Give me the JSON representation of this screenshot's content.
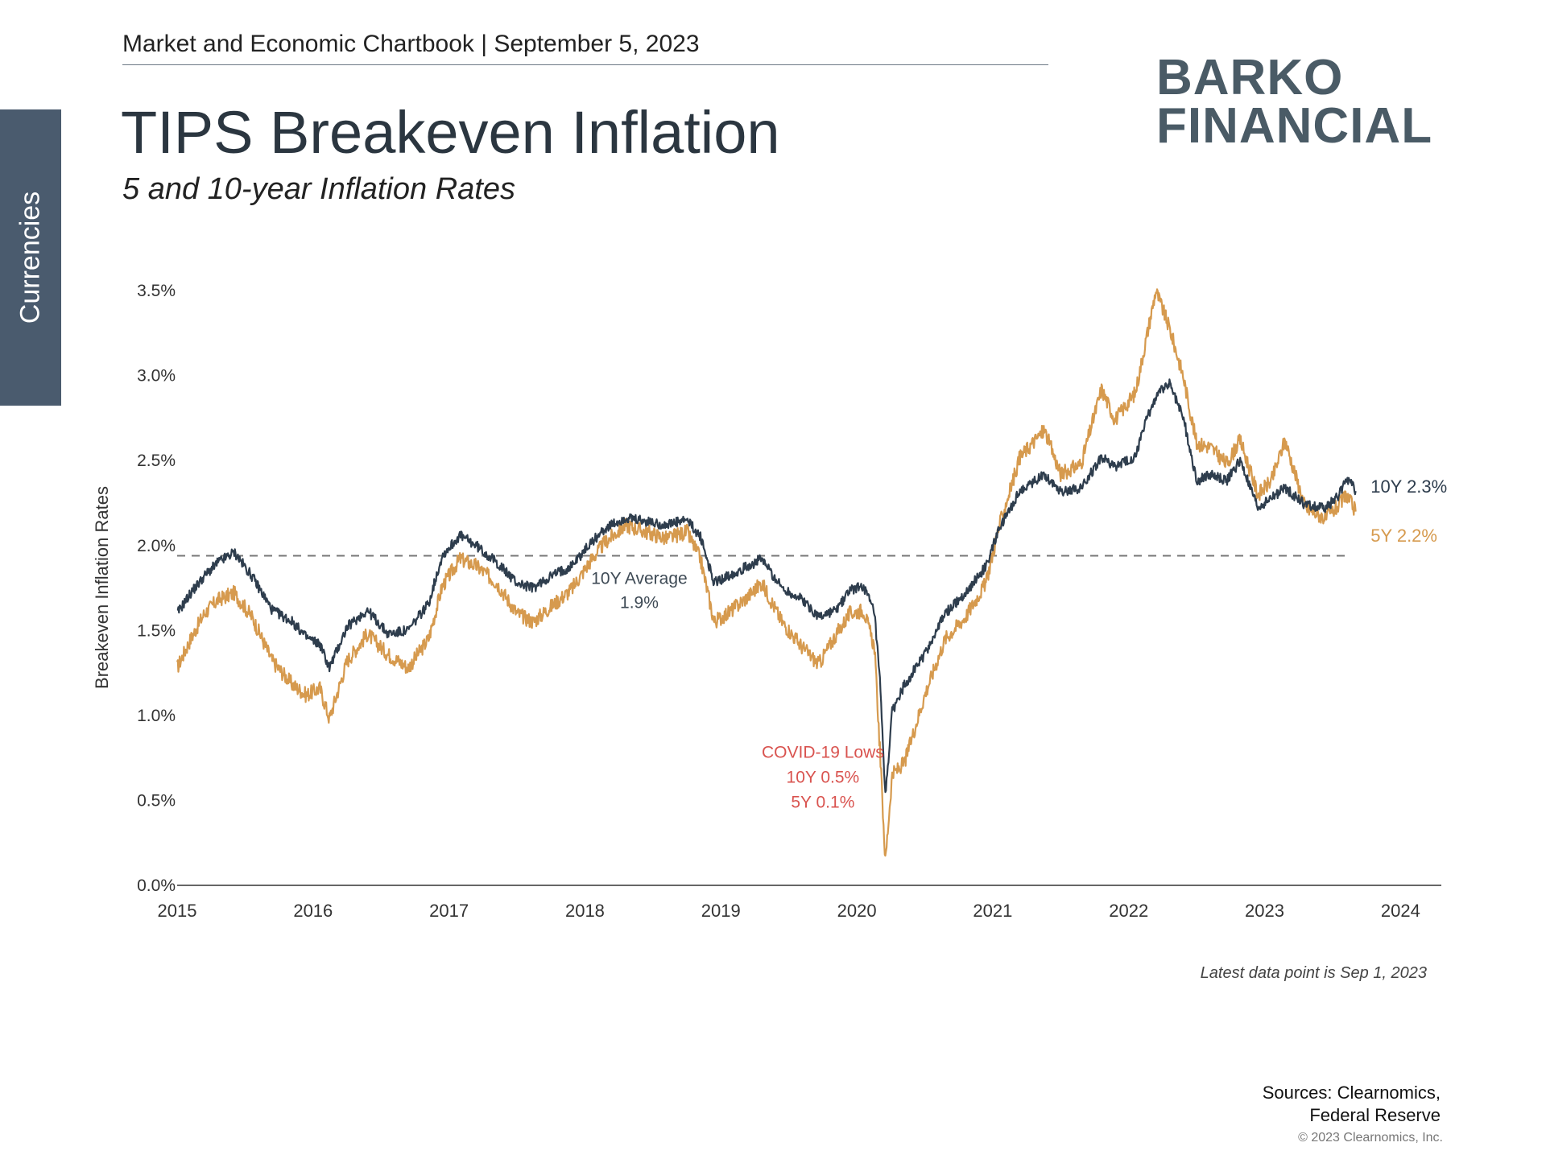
{
  "side_tab": {
    "label": "Currencies"
  },
  "header": {
    "chartbook": "Market and Economic Chartbook | September 5, 2023"
  },
  "title": "TIPS Breakeven Inflation",
  "subtitle": "5 and 10-year Inflation Rates",
  "logo": {
    "line1": "BARKO",
    "line2": "FINANCIAL",
    "color": "#4a5b66"
  },
  "footer": {
    "latest": "Latest data point is Sep 1, 2023",
    "sources_line1": "Sources: Clearnomics,",
    "sources_line2": "Federal Reserve",
    "copyright": "© 2023 Clearnomics, Inc."
  },
  "chart_data": {
    "type": "line",
    "ylabel": "Breakeven Inflation Rates",
    "xlabel": "",
    "ylim": [
      0,
      3.6
    ],
    "xlim": [
      2015.0,
      2024.3
    ],
    "y_ticks": [
      "0.0%",
      "0.5%",
      "1.0%",
      "1.5%",
      "2.0%",
      "2.5%",
      "3.0%",
      "3.5%"
    ],
    "y_tick_values": [
      0,
      0.5,
      1.0,
      1.5,
      2.0,
      2.5,
      3.0,
      3.5
    ],
    "x_ticks": [
      "2015",
      "2016",
      "2017",
      "2018",
      "2019",
      "2020",
      "2021",
      "2022",
      "2023",
      "2024"
    ],
    "x_tick_values": [
      2015,
      2016,
      2017,
      2018,
      2019,
      2020,
      2021,
      2022,
      2023,
      2024
    ],
    "grid": false,
    "series": [
      {
        "name": "10Y",
        "color": "#2e3d4d",
        "end_label": "10Y 2.3%",
        "points": [
          [
            2015.0,
            1.6
          ],
          [
            2015.1,
            1.72
          ],
          [
            2015.2,
            1.82
          ],
          [
            2015.3,
            1.9
          ],
          [
            2015.42,
            1.96
          ],
          [
            2015.55,
            1.82
          ],
          [
            2015.7,
            1.62
          ],
          [
            2015.85,
            1.55
          ],
          [
            2015.95,
            1.46
          ],
          [
            2016.05,
            1.42
          ],
          [
            2016.12,
            1.28
          ],
          [
            2016.25,
            1.52
          ],
          [
            2016.4,
            1.62
          ],
          [
            2016.55,
            1.48
          ],
          [
            2016.7,
            1.5
          ],
          [
            2016.85,
            1.66
          ],
          [
            2016.95,
            1.94
          ],
          [
            2017.08,
            2.06
          ],
          [
            2017.2,
            2.0
          ],
          [
            2017.35,
            1.9
          ],
          [
            2017.5,
            1.78
          ],
          [
            2017.62,
            1.75
          ],
          [
            2017.75,
            1.82
          ],
          [
            2017.9,
            1.88
          ],
          [
            2018.05,
            2.02
          ],
          [
            2018.15,
            2.1
          ],
          [
            2018.3,
            2.16
          ],
          [
            2018.45,
            2.14
          ],
          [
            2018.6,
            2.12
          ],
          [
            2018.75,
            2.15
          ],
          [
            2018.85,
            2.05
          ],
          [
            2018.95,
            1.78
          ],
          [
            2019.05,
            1.82
          ],
          [
            2019.2,
            1.88
          ],
          [
            2019.3,
            1.92
          ],
          [
            2019.45,
            1.75
          ],
          [
            2019.6,
            1.68
          ],
          [
            2019.72,
            1.58
          ],
          [
            2019.85,
            1.62
          ],
          [
            2019.95,
            1.74
          ],
          [
            2020.05,
            1.76
          ],
          [
            2020.13,
            1.6
          ],
          [
            2020.17,
            1.2
          ],
          [
            2020.21,
            0.52
          ],
          [
            2020.26,
            1.02
          ],
          [
            2020.35,
            1.18
          ],
          [
            2020.5,
            1.36
          ],
          [
            2020.65,
            1.6
          ],
          [
            2020.8,
            1.72
          ],
          [
            2020.95,
            1.88
          ],
          [
            2021.05,
            2.1
          ],
          [
            2021.2,
            2.32
          ],
          [
            2021.38,
            2.42
          ],
          [
            2021.5,
            2.32
          ],
          [
            2021.65,
            2.34
          ],
          [
            2021.8,
            2.52
          ],
          [
            2021.9,
            2.46
          ],
          [
            2022.05,
            2.52
          ],
          [
            2022.12,
            2.72
          ],
          [
            2022.2,
            2.88
          ],
          [
            2022.3,
            2.96
          ],
          [
            2022.4,
            2.76
          ],
          [
            2022.5,
            2.38
          ],
          [
            2022.6,
            2.42
          ],
          [
            2022.72,
            2.38
          ],
          [
            2022.82,
            2.5
          ],
          [
            2022.95,
            2.22
          ],
          [
            2023.05,
            2.28
          ],
          [
            2023.15,
            2.34
          ],
          [
            2023.3,
            2.24
          ],
          [
            2023.45,
            2.22
          ],
          [
            2023.55,
            2.3
          ],
          [
            2023.6,
            2.4
          ],
          [
            2023.67,
            2.32
          ]
        ]
      },
      {
        "name": "5Y",
        "color": "#d69a4e",
        "end_label": "5Y 2.2%",
        "points": [
          [
            2015.0,
            1.28
          ],
          [
            2015.1,
            1.45
          ],
          [
            2015.2,
            1.6
          ],
          [
            2015.3,
            1.68
          ],
          [
            2015.42,
            1.72
          ],
          [
            2015.55,
            1.58
          ],
          [
            2015.7,
            1.32
          ],
          [
            2015.85,
            1.18
          ],
          [
            2015.95,
            1.12
          ],
          [
            2016.05,
            1.16
          ],
          [
            2016.12,
            0.98
          ],
          [
            2016.25,
            1.32
          ],
          [
            2016.4,
            1.48
          ],
          [
            2016.55,
            1.36
          ],
          [
            2016.7,
            1.28
          ],
          [
            2016.85,
            1.45
          ],
          [
            2016.95,
            1.76
          ],
          [
            2017.08,
            1.92
          ],
          [
            2017.2,
            1.88
          ],
          [
            2017.35,
            1.78
          ],
          [
            2017.5,
            1.6
          ],
          [
            2017.62,
            1.55
          ],
          [
            2017.75,
            1.64
          ],
          [
            2017.9,
            1.74
          ],
          [
            2018.05,
            1.92
          ],
          [
            2018.15,
            2.02
          ],
          [
            2018.3,
            2.12
          ],
          [
            2018.45,
            2.08
          ],
          [
            2018.6,
            2.04
          ],
          [
            2018.75,
            2.08
          ],
          [
            2018.85,
            1.92
          ],
          [
            2018.95,
            1.55
          ],
          [
            2019.05,
            1.6
          ],
          [
            2019.2,
            1.7
          ],
          [
            2019.3,
            1.78
          ],
          [
            2019.45,
            1.55
          ],
          [
            2019.6,
            1.4
          ],
          [
            2019.72,
            1.3
          ],
          [
            2019.85,
            1.48
          ],
          [
            2019.95,
            1.6
          ],
          [
            2020.05,
            1.62
          ],
          [
            2020.13,
            1.4
          ],
          [
            2020.17,
            0.8
          ],
          [
            2020.21,
            0.14
          ],
          [
            2020.26,
            0.65
          ],
          [
            2020.35,
            0.72
          ],
          [
            2020.5,
            1.12
          ],
          [
            2020.65,
            1.45
          ],
          [
            2020.8,
            1.58
          ],
          [
            2020.95,
            1.78
          ],
          [
            2021.05,
            2.12
          ],
          [
            2021.2,
            2.52
          ],
          [
            2021.38,
            2.68
          ],
          [
            2021.5,
            2.42
          ],
          [
            2021.65,
            2.48
          ],
          [
            2021.8,
            2.92
          ],
          [
            2021.9,
            2.74
          ],
          [
            2022.05,
            2.9
          ],
          [
            2022.12,
            3.18
          ],
          [
            2022.2,
            3.5
          ],
          [
            2022.3,
            3.28
          ],
          [
            2022.4,
            3.0
          ],
          [
            2022.5,
            2.6
          ],
          [
            2022.6,
            2.58
          ],
          [
            2022.72,
            2.48
          ],
          [
            2022.82,
            2.62
          ],
          [
            2022.95,
            2.3
          ],
          [
            2023.05,
            2.38
          ],
          [
            2023.15,
            2.62
          ],
          [
            2023.3,
            2.22
          ],
          [
            2023.45,
            2.16
          ],
          [
            2023.55,
            2.24
          ],
          [
            2023.6,
            2.3
          ],
          [
            2023.67,
            2.2
          ]
        ]
      }
    ],
    "reference_line": {
      "value": 1.94,
      "label_line1": "10Y Average",
      "label_line2": "1.9%"
    },
    "annotation": {
      "line1": "COVID-19 Lows",
      "line2": "10Y 0.5%",
      "line3": "5Y 0.1%",
      "color": "#d9534f",
      "anchor_x": 2019.75,
      "anchor_y": 0.6
    }
  }
}
